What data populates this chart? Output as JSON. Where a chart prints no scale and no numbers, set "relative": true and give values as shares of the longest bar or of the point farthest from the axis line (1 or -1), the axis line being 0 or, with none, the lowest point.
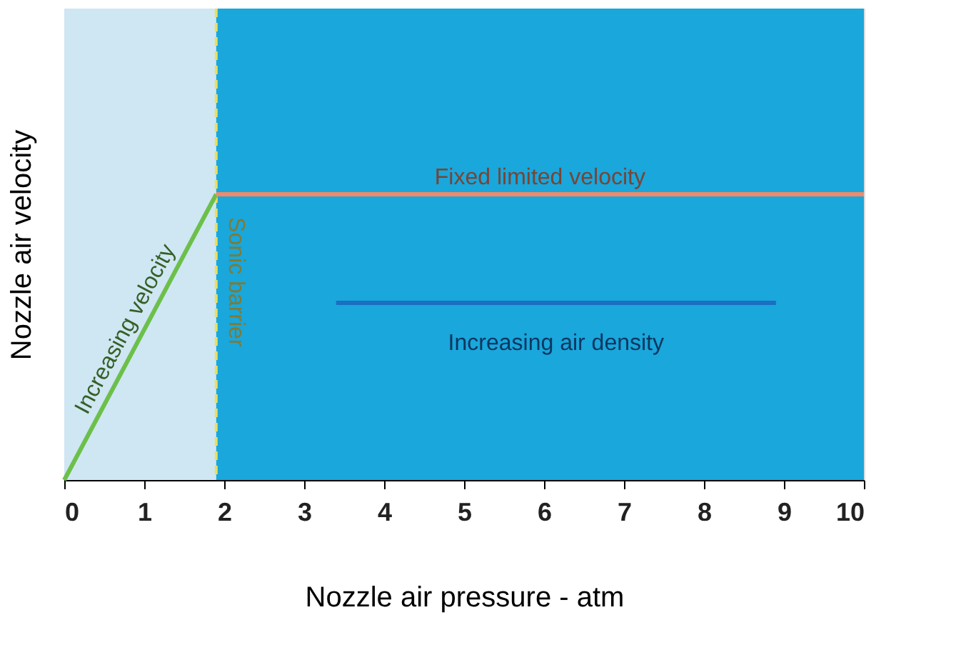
{
  "chart_data": {
    "type": "line",
    "relative": true,
    "xlabel": "Nozzle air pressure - atm",
    "ylabel": "Nozzle air velocity",
    "xlim": [
      0,
      10
    ],
    "xticks": [
      0,
      1,
      2,
      3,
      4,
      5,
      6,
      7,
      8,
      9,
      10
    ],
    "tick_labels": "x",
    "grid": false,
    "legend": false,
    "marker": "none",
    "series": [
      {
        "name": "Increasing velocity",
        "color": "#6cc04a",
        "x": [
          0,
          1.9
        ],
        "values": [
          0,
          1
        ]
      },
      {
        "name": "Fixed limited velocity",
        "color": "#f08a6a",
        "x": [
          1.9,
          10
        ],
        "values": [
          1,
          1
        ]
      },
      {
        "name": "Increasing air density",
        "color": "#1a6fc0",
        "x": [
          3.4,
          8.9
        ],
        "values": [
          0.62,
          0.62
        ]
      }
    ],
    "ref_lines": [
      {
        "axis": "x",
        "value": 1.9,
        "label": "Sonic barrier",
        "color": "#e8e060",
        "line_style": "dashed"
      }
    ],
    "bands": [
      {
        "axis": "x",
        "from": 0,
        "to": 1.9,
        "color": "#cfe6f3"
      },
      {
        "axis": "x",
        "from": 1.9,
        "to": 10,
        "color": "#19a7dc"
      }
    ]
  }
}
